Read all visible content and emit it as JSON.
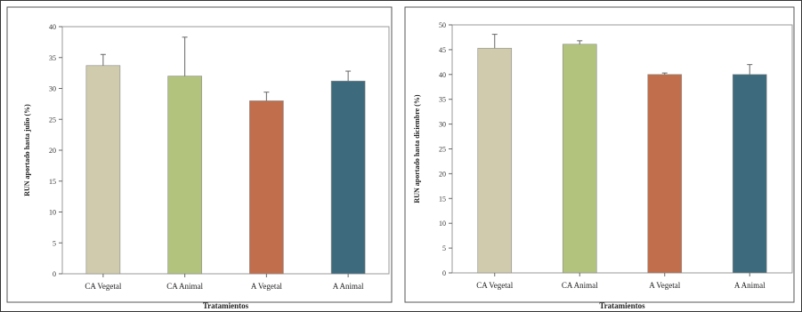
{
  "chart_data": [
    {
      "type": "bar",
      "title": "",
      "xlabel": "Tratamientos",
      "ylabel": "RUN aportado hasta julio (%)",
      "categories": [
        "CA Vegetal",
        "CA Animal",
        "A Vegetal",
        "A Animal"
      ],
      "values": [
        33.7,
        32.0,
        28.0,
        31.2
      ],
      "errors": [
        1.8,
        6.3,
        1.4,
        1.6
      ],
      "colors": [
        "#cfcbac",
        "#b2c37e",
        "#c06e4c",
        "#3d6a7d"
      ],
      "ylim": [
        0,
        40
      ],
      "yticks": [
        0,
        5,
        10,
        15,
        20,
        25,
        30,
        35,
        40
      ],
      "grid": false
    },
    {
      "type": "bar",
      "title": "",
      "xlabel": "Tratamientos",
      "ylabel": "RUN aportado hasta diciembre (%)",
      "categories": [
        "CA Vegetal",
        "CA Animal",
        "A Vegetal",
        "A Animal"
      ],
      "values": [
        45.3,
        46.1,
        40.0,
        40.0
      ],
      "errors": [
        2.8,
        0.7,
        0.3,
        2.0
      ],
      "colors": [
        "#cfcbac",
        "#b2c37e",
        "#c06e4c",
        "#3d6a7d"
      ],
      "ylim": [
        0,
        50
      ],
      "yticks": [
        0,
        5,
        10,
        15,
        20,
        25,
        30,
        35,
        40,
        45,
        50
      ],
      "grid": false
    }
  ]
}
